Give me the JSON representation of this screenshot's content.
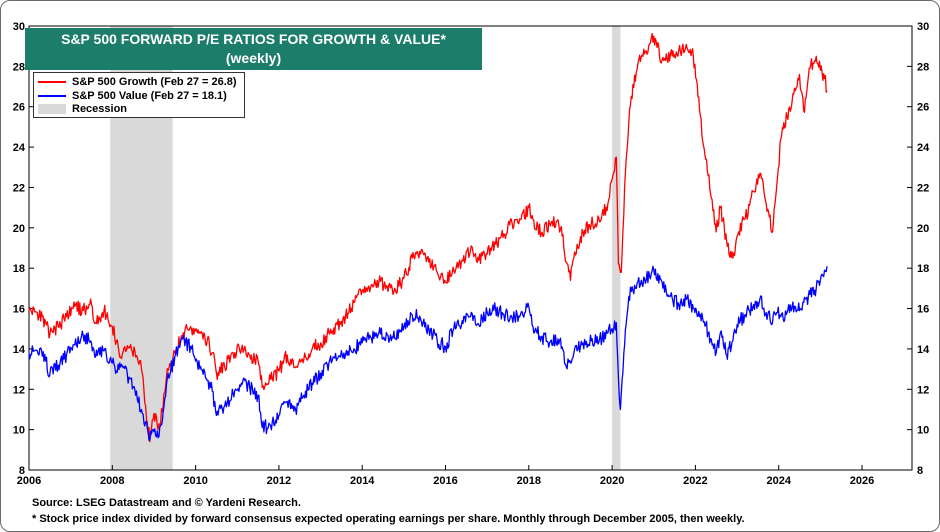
{
  "title": {
    "line1": "S&P 500 FORWARD P/E RATIOS FOR GROWTH & VALUE*",
    "line2": "(weekly)"
  },
  "legend": [
    {
      "label": "S&P 500 Growth (Feb 27 = 26.8)",
      "color": "#ff0000",
      "kind": "line"
    },
    {
      "label": "S&P 500 Value (Feb 27 = 18.1)",
      "color": "#0000ff",
      "kind": "line"
    },
    {
      "label": "Recession",
      "color": "#d9d9d9",
      "kind": "box"
    }
  ],
  "footer": {
    "source": "Source: LSEG Datastream and © Yardeni Research.",
    "note": "* Stock price index divided by forward consensus expected operating earnings per share. Monthly through December 2005, then weekly."
  },
  "chart_data": {
    "type": "line",
    "xlim": [
      2006,
      2027.2
    ],
    "ylim": [
      8,
      30
    ],
    "x_ticks": [
      2006,
      2008,
      2010,
      2012,
      2014,
      2016,
      2018,
      2020,
      2022,
      2024,
      2026
    ],
    "y_ticks": [
      8,
      10,
      12,
      14,
      16,
      18,
      20,
      22,
      24,
      26,
      28,
      30
    ],
    "y_axis_both_sides": true,
    "grid": false,
    "legend_position": "top-left",
    "recessions": [
      [
        2007.95,
        2009.45
      ],
      [
        2020.0,
        2020.2
      ]
    ],
    "series": [
      {
        "name": "S&P 500 Growth",
        "color": "#ff0000",
        "points": [
          [
            2006.0,
            15.9
          ],
          [
            2006.2,
            15.8
          ],
          [
            2006.4,
            15.3
          ],
          [
            2006.5,
            14.7
          ],
          [
            2006.7,
            15.1
          ],
          [
            2006.9,
            15.6
          ],
          [
            2007.1,
            16.1
          ],
          [
            2007.3,
            15.9
          ],
          [
            2007.5,
            16.2
          ],
          [
            2007.6,
            15.3
          ],
          [
            2007.8,
            15.9
          ],
          [
            2008.0,
            15.1
          ],
          [
            2008.1,
            14.4
          ],
          [
            2008.2,
            13.6
          ],
          [
            2008.4,
            14.1
          ],
          [
            2008.6,
            13.6
          ],
          [
            2008.7,
            13.0
          ],
          [
            2008.8,
            11.2
          ],
          [
            2008.9,
            9.4
          ],
          [
            2009.0,
            10.8
          ],
          [
            2009.1,
            10.0
          ],
          [
            2009.2,
            10.9
          ],
          [
            2009.3,
            12.6
          ],
          [
            2009.5,
            13.8
          ],
          [
            2009.7,
            14.8
          ],
          [
            2009.9,
            15.0
          ],
          [
            2010.0,
            14.9
          ],
          [
            2010.2,
            14.8
          ],
          [
            2010.4,
            13.8
          ],
          [
            2010.5,
            12.8
          ],
          [
            2010.7,
            13.1
          ],
          [
            2010.9,
            13.8
          ],
          [
            2011.1,
            14.0
          ],
          [
            2011.3,
            13.7
          ],
          [
            2011.5,
            13.4
          ],
          [
            2011.6,
            12.1
          ],
          [
            2011.8,
            12.5
          ],
          [
            2012.0,
            12.9
          ],
          [
            2012.2,
            13.7
          ],
          [
            2012.4,
            13.1
          ],
          [
            2012.6,
            13.5
          ],
          [
            2012.8,
            14.0
          ],
          [
            2013.0,
            14.3
          ],
          [
            2013.2,
            14.8
          ],
          [
            2013.4,
            15.2
          ],
          [
            2013.6,
            15.6
          ],
          [
            2013.8,
            16.3
          ],
          [
            2014.0,
            16.9
          ],
          [
            2014.2,
            17.0
          ],
          [
            2014.4,
            17.3
          ],
          [
            2014.6,
            17.1
          ],
          [
            2014.8,
            16.9
          ],
          [
            2015.0,
            17.5
          ],
          [
            2015.2,
            18.5
          ],
          [
            2015.4,
            18.7
          ],
          [
            2015.6,
            18.3
          ],
          [
            2015.8,
            17.8
          ],
          [
            2016.0,
            17.3
          ],
          [
            2016.2,
            17.9
          ],
          [
            2016.4,
            18.4
          ],
          [
            2016.6,
            18.9
          ],
          [
            2016.8,
            18.4
          ],
          [
            2017.0,
            18.7
          ],
          [
            2017.2,
            19.2
          ],
          [
            2017.4,
            19.7
          ],
          [
            2017.6,
            20.2
          ],
          [
            2017.8,
            20.4
          ],
          [
            2018.0,
            21.0
          ],
          [
            2018.1,
            20.4
          ],
          [
            2018.3,
            19.7
          ],
          [
            2018.5,
            20.2
          ],
          [
            2018.7,
            20.4
          ],
          [
            2018.8,
            19.6
          ],
          [
            2018.9,
            18.3
          ],
          [
            2019.0,
            17.4
          ],
          [
            2019.1,
            18.8
          ],
          [
            2019.3,
            19.8
          ],
          [
            2019.5,
            20.2
          ],
          [
            2019.7,
            20.3
          ],
          [
            2019.9,
            21.2
          ],
          [
            2020.0,
            22.4
          ],
          [
            2020.1,
            23.5
          ],
          [
            2020.15,
            18.2
          ],
          [
            2020.22,
            17.8
          ],
          [
            2020.3,
            22.0
          ],
          [
            2020.4,
            25.2
          ],
          [
            2020.5,
            27.1
          ],
          [
            2020.7,
            28.5
          ],
          [
            2020.9,
            29.1
          ],
          [
            2021.0,
            29.5
          ],
          [
            2021.2,
            28.3
          ],
          [
            2021.4,
            28.6
          ],
          [
            2021.6,
            28.8
          ],
          [
            2021.8,
            28.9
          ],
          [
            2021.95,
            28.5
          ],
          [
            2022.1,
            25.8
          ],
          [
            2022.25,
            23.4
          ],
          [
            2022.4,
            21.4
          ],
          [
            2022.5,
            19.8
          ],
          [
            2022.6,
            21.0
          ],
          [
            2022.75,
            19.3
          ],
          [
            2022.9,
            18.5
          ],
          [
            2023.0,
            19.6
          ],
          [
            2023.2,
            20.5
          ],
          [
            2023.4,
            21.8
          ],
          [
            2023.55,
            22.7
          ],
          [
            2023.7,
            21.2
          ],
          [
            2023.85,
            19.8
          ],
          [
            2023.95,
            22.0
          ],
          [
            2024.05,
            24.4
          ],
          [
            2024.2,
            25.5
          ],
          [
            2024.4,
            26.8
          ],
          [
            2024.5,
            27.6
          ],
          [
            2024.6,
            25.8
          ],
          [
            2024.75,
            27.9
          ],
          [
            2024.9,
            28.5
          ],
          [
            2025.0,
            27.8
          ],
          [
            2025.1,
            27.4
          ],
          [
            2025.16,
            26.8
          ]
        ]
      },
      {
        "name": "S&P 500 Value",
        "color": "#0000ff",
        "points": [
          [
            2006.0,
            13.8
          ],
          [
            2006.2,
            13.9
          ],
          [
            2006.4,
            13.4
          ],
          [
            2006.5,
            12.7
          ],
          [
            2006.7,
            13.2
          ],
          [
            2006.9,
            13.7
          ],
          [
            2007.1,
            14.2
          ],
          [
            2007.3,
            14.7
          ],
          [
            2007.5,
            14.3
          ],
          [
            2007.6,
            13.6
          ],
          [
            2007.8,
            13.9
          ],
          [
            2008.0,
            13.3
          ],
          [
            2008.1,
            12.9
          ],
          [
            2008.2,
            13.1
          ],
          [
            2008.4,
            12.6
          ],
          [
            2008.6,
            11.5
          ],
          [
            2008.7,
            11.0
          ],
          [
            2008.8,
            10.4
          ],
          [
            2008.9,
            9.5
          ],
          [
            2009.0,
            9.9
          ],
          [
            2009.1,
            9.6
          ],
          [
            2009.2,
            10.4
          ],
          [
            2009.3,
            12.2
          ],
          [
            2009.5,
            13.6
          ],
          [
            2009.7,
            14.5
          ],
          [
            2009.9,
            14.0
          ],
          [
            2010.0,
            13.4
          ],
          [
            2010.2,
            13.0
          ],
          [
            2010.4,
            11.9
          ],
          [
            2010.5,
            10.7
          ],
          [
            2010.7,
            11.2
          ],
          [
            2010.9,
            11.8
          ],
          [
            2011.1,
            12.3
          ],
          [
            2011.3,
            12.1
          ],
          [
            2011.5,
            11.7
          ],
          [
            2011.6,
            10.1
          ],
          [
            2011.8,
            10.2
          ],
          [
            2012.0,
            10.7
          ],
          [
            2012.2,
            11.4
          ],
          [
            2012.4,
            11.0
          ],
          [
            2012.6,
            11.7
          ],
          [
            2012.8,
            12.3
          ],
          [
            2013.0,
            12.8
          ],
          [
            2013.2,
            13.3
          ],
          [
            2013.4,
            13.5
          ],
          [
            2013.6,
            13.7
          ],
          [
            2013.8,
            14.0
          ],
          [
            2014.0,
            14.3
          ],
          [
            2014.2,
            14.6
          ],
          [
            2014.4,
            14.8
          ],
          [
            2014.6,
            14.7
          ],
          [
            2014.8,
            14.5
          ],
          [
            2015.0,
            15.1
          ],
          [
            2015.2,
            15.7
          ],
          [
            2015.4,
            15.5
          ],
          [
            2015.6,
            15.0
          ],
          [
            2015.8,
            14.4
          ],
          [
            2016.0,
            14.1
          ],
          [
            2016.2,
            15.0
          ],
          [
            2016.4,
            15.4
          ],
          [
            2016.6,
            15.6
          ],
          [
            2016.8,
            15.2
          ],
          [
            2017.0,
            15.8
          ],
          [
            2017.2,
            16.0
          ],
          [
            2017.4,
            15.7
          ],
          [
            2017.6,
            15.5
          ],
          [
            2017.8,
            15.7
          ],
          [
            2018.0,
            16.1
          ],
          [
            2018.1,
            15.1
          ],
          [
            2018.3,
            14.6
          ],
          [
            2018.5,
            14.3
          ],
          [
            2018.7,
            14.5
          ],
          [
            2018.8,
            14.1
          ],
          [
            2018.9,
            13.1
          ],
          [
            2019.0,
            13.3
          ],
          [
            2019.1,
            14.0
          ],
          [
            2019.3,
            14.3
          ],
          [
            2019.5,
            14.4
          ],
          [
            2019.7,
            14.5
          ],
          [
            2019.9,
            14.8
          ],
          [
            2020.0,
            15.0
          ],
          [
            2020.1,
            15.3
          ],
          [
            2020.15,
            12.6
          ],
          [
            2020.2,
            11.0
          ],
          [
            2020.3,
            14.2
          ],
          [
            2020.4,
            16.6
          ],
          [
            2020.5,
            16.9
          ],
          [
            2020.7,
            17.4
          ],
          [
            2020.9,
            17.6
          ],
          [
            2021.0,
            17.9
          ],
          [
            2021.2,
            17.3
          ],
          [
            2021.4,
            16.6
          ],
          [
            2021.6,
            16.2
          ],
          [
            2021.8,
            16.5
          ],
          [
            2021.95,
            16.0
          ],
          [
            2022.1,
            15.6
          ],
          [
            2022.25,
            15.2
          ],
          [
            2022.4,
            14.2
          ],
          [
            2022.5,
            13.8
          ],
          [
            2022.6,
            14.8
          ],
          [
            2022.75,
            13.7
          ],
          [
            2022.9,
            14.4
          ],
          [
            2023.0,
            15.2
          ],
          [
            2023.2,
            15.7
          ],
          [
            2023.4,
            16.2
          ],
          [
            2023.55,
            16.5
          ],
          [
            2023.7,
            15.8
          ],
          [
            2023.85,
            15.3
          ],
          [
            2023.95,
            15.8
          ],
          [
            2024.05,
            15.6
          ],
          [
            2024.2,
            15.8
          ],
          [
            2024.4,
            16.1
          ],
          [
            2024.5,
            15.9
          ],
          [
            2024.6,
            16.3
          ],
          [
            2024.75,
            16.7
          ],
          [
            2024.9,
            17.0
          ],
          [
            2025.0,
            17.4
          ],
          [
            2025.1,
            17.9
          ],
          [
            2025.16,
            18.1
          ]
        ]
      }
    ]
  }
}
